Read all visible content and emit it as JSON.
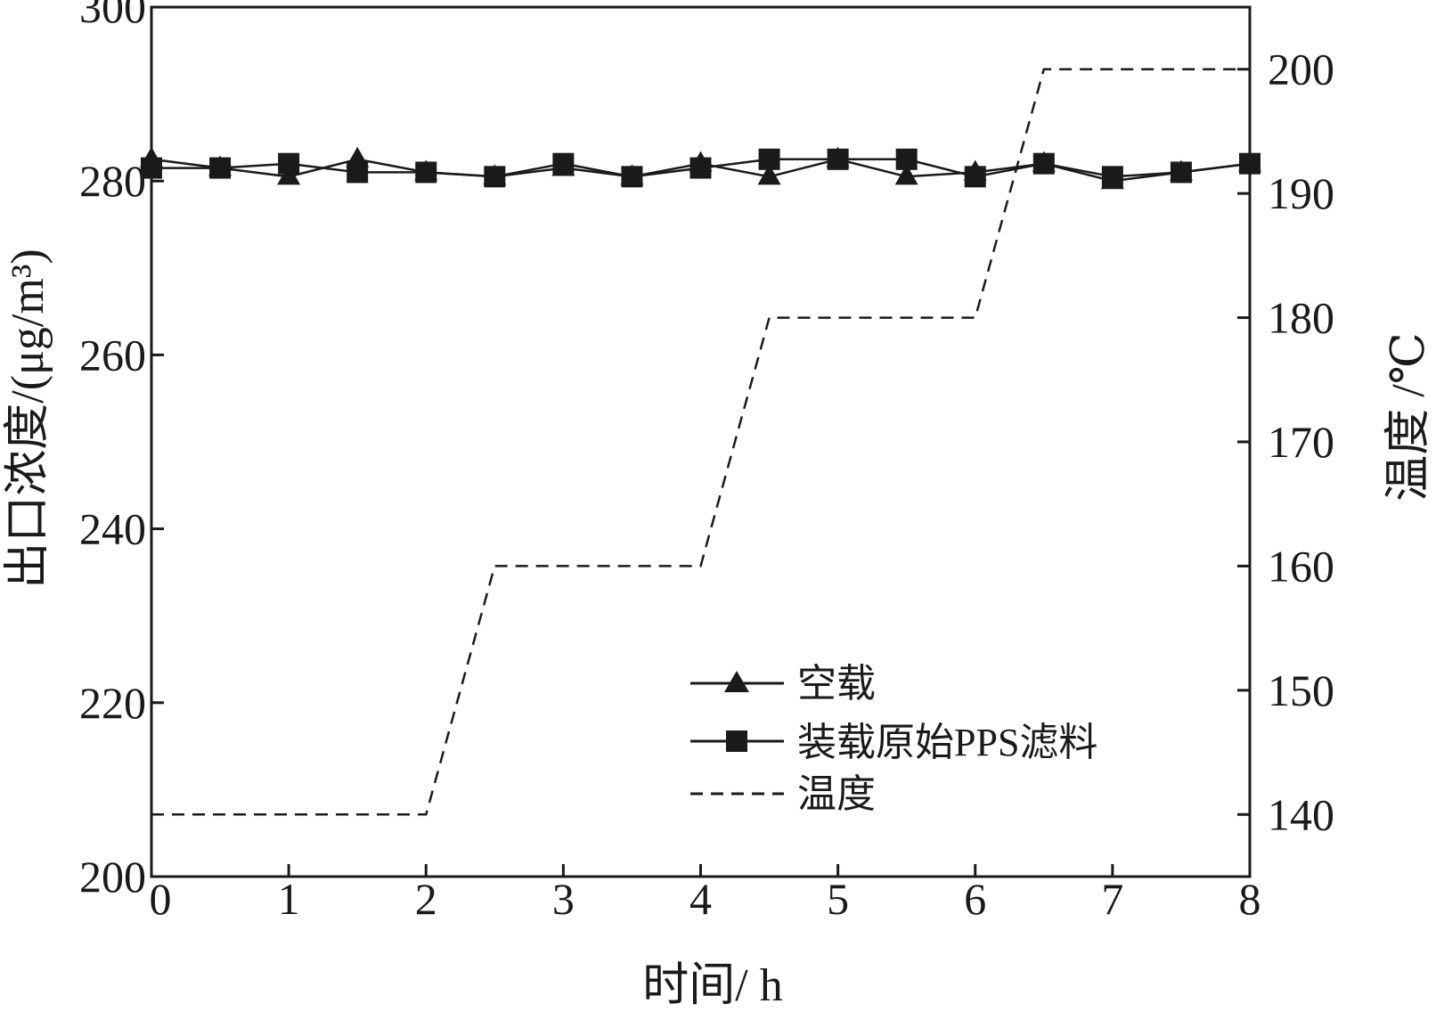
{
  "chart_data": {
    "type": "line",
    "xlabel": "时间/ h",
    "ylabel": "出口浓度/(μg/m³)",
    "y2label": "温度 /℃",
    "xlim": [
      0,
      8
    ],
    "ylim": [
      200,
      300
    ],
    "y2lim": [
      135,
      205
    ],
    "xticks": [
      0,
      1,
      2,
      3,
      4,
      5,
      6,
      7,
      8
    ],
    "yticks": [
      200,
      220,
      240,
      260,
      280,
      300
    ],
    "y2ticks": [
      140,
      150,
      160,
      170,
      180,
      190,
      200
    ],
    "grid": false,
    "legend_position": "lower-right",
    "series": [
      {
        "name": "空载",
        "axis": "left",
        "line_style": "solid",
        "marker": "triangle",
        "color": "#1a1a1a",
        "x": [
          0,
          0.5,
          1,
          1.5,
          2,
          2.5,
          3,
          3.5,
          4,
          4.5,
          5,
          5.5,
          6,
          6.5,
          7,
          7.5,
          8
        ],
        "values": [
          282.5,
          281.5,
          280.5,
          282.5,
          281,
          280.5,
          281.5,
          280.5,
          282,
          280.5,
          282.5,
          280.5,
          281,
          282,
          280,
          281,
          282
        ]
      },
      {
        "name": "装载原始PPS滤料",
        "axis": "left",
        "line_style": "solid",
        "marker": "square",
        "color": "#1a1a1a",
        "x": [
          0,
          0.5,
          1,
          1.5,
          2,
          2.5,
          3,
          3.5,
          4,
          4.5,
          5,
          5.5,
          6,
          6.5,
          7,
          7.5,
          8
        ],
        "values": [
          281.5,
          281.5,
          282,
          281,
          281,
          280.5,
          282,
          280.5,
          281.5,
          282.5,
          282.5,
          282.5,
          280.5,
          282,
          280.5,
          281,
          282
        ]
      },
      {
        "name": "温度",
        "axis": "right",
        "line_style": "dashed",
        "marker": "none",
        "color": "#1a1a1a",
        "x": [
          0,
          2,
          2.1,
          2.2,
          2.3,
          2.4,
          2.5,
          4,
          4.1,
          4.2,
          4.3,
          4.4,
          4.5,
          6,
          6.1,
          6.2,
          6.3,
          6.4,
          6.5,
          8
        ],
        "values": [
          140,
          140,
          144,
          148,
          152,
          156,
          160,
          160,
          164,
          168,
          172,
          176,
          180,
          180,
          184,
          188,
          192,
          196,
          200,
          200
        ]
      }
    ]
  }
}
